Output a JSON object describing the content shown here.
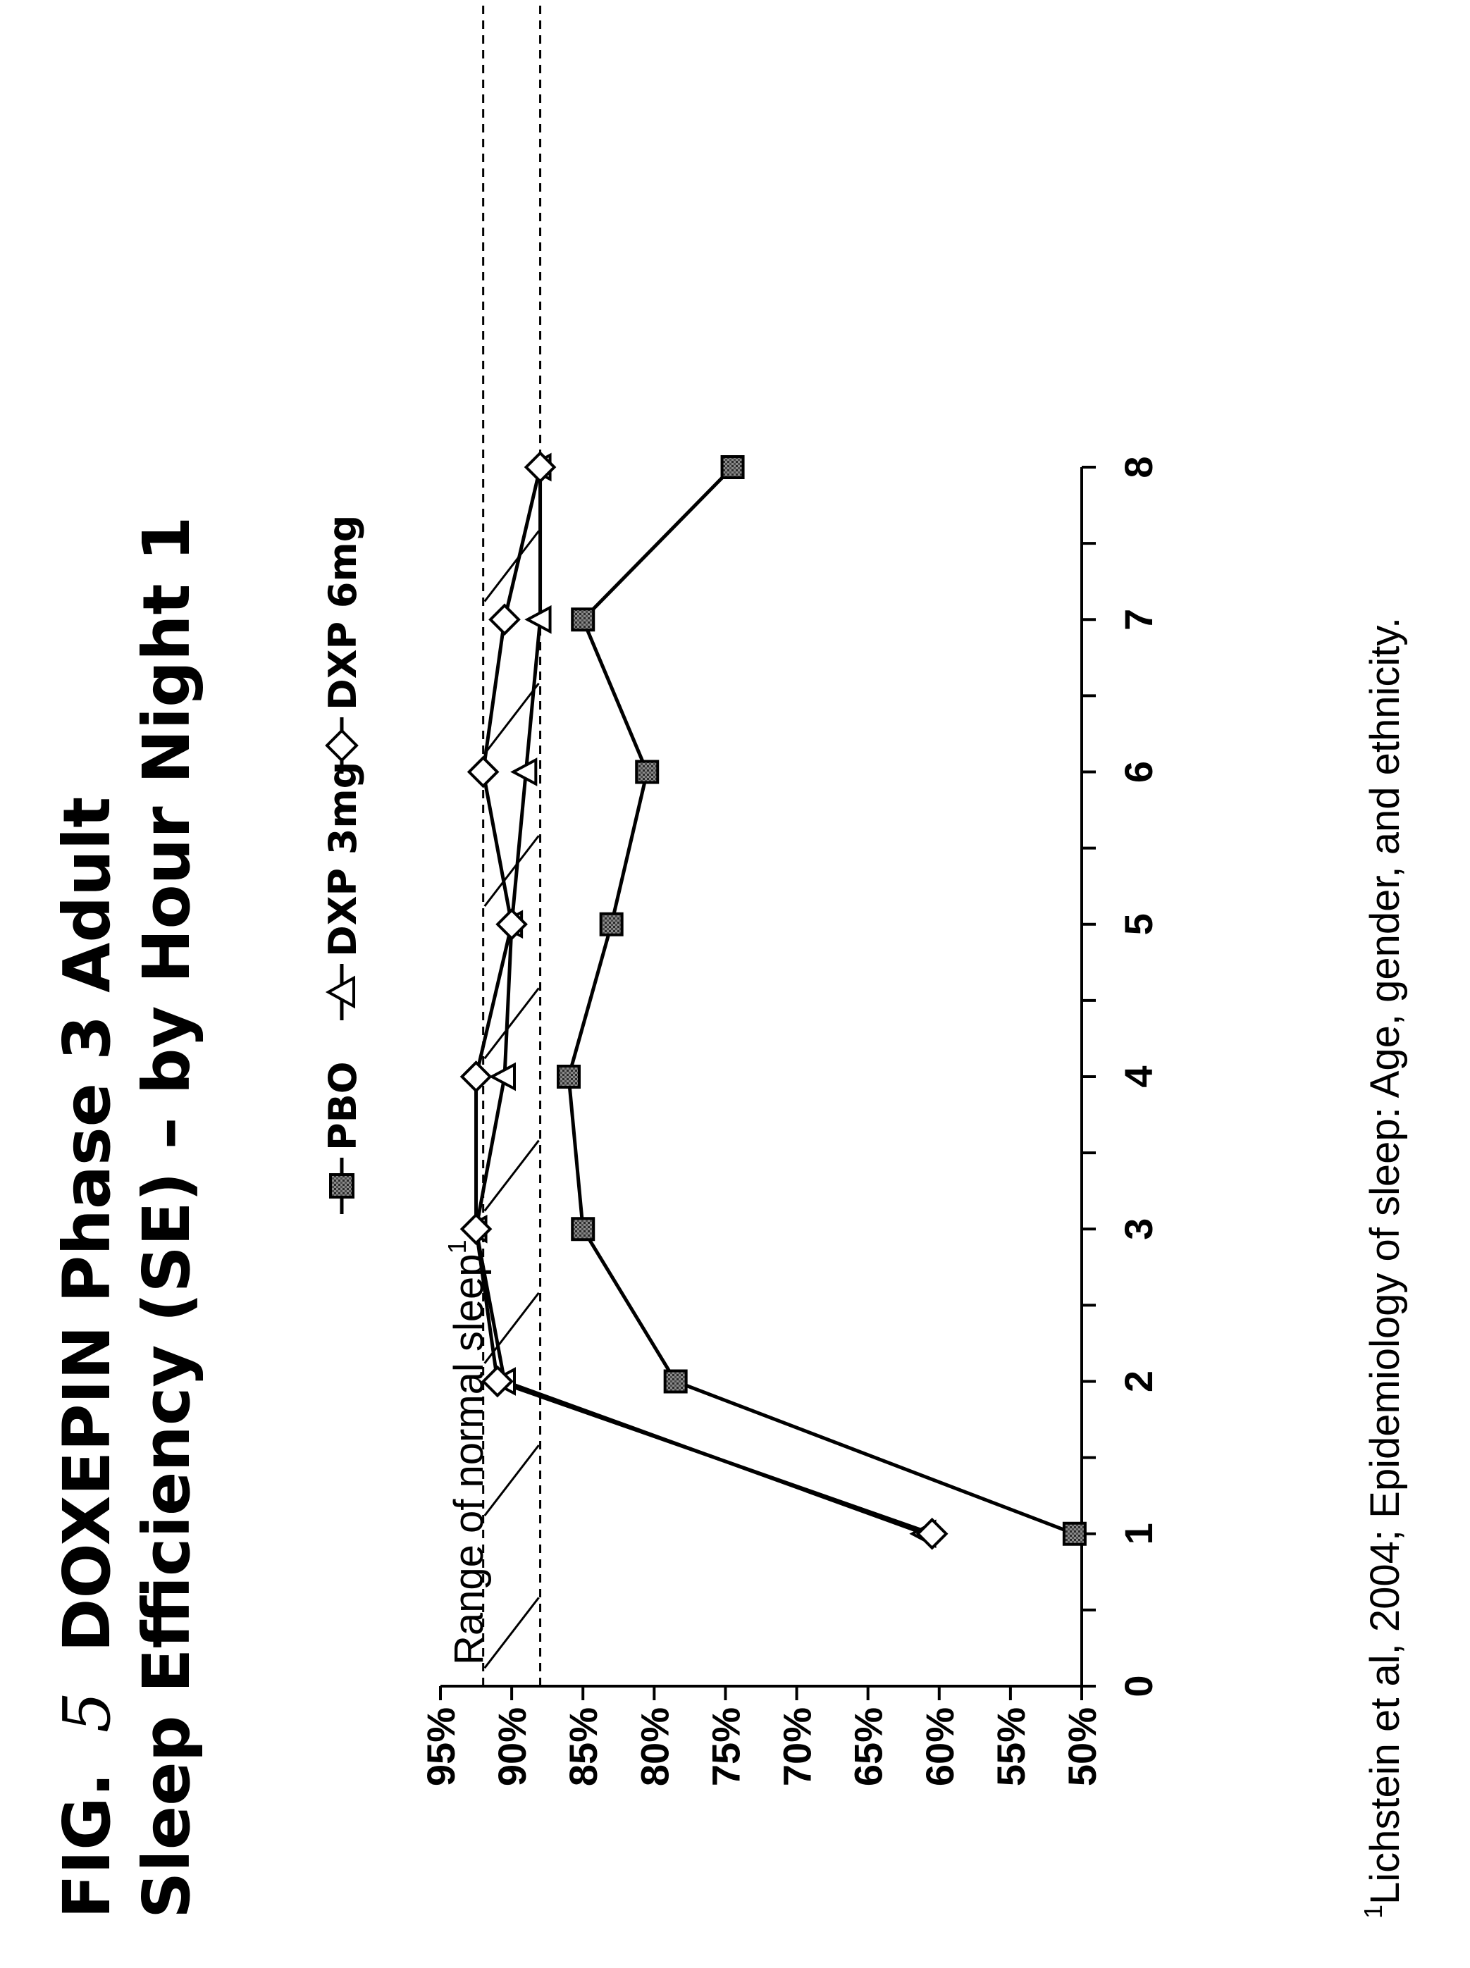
{
  "figure": {
    "fig_label": "FIG.",
    "fig_number": "5",
    "title_line1": "DOXEPIN Phase 3 Adult",
    "title_line2": "Sleep Efficiency (SE) – by Hour Night 1",
    "footnote_marker": "1",
    "footnote_text": "Lichstein et al, 2004; Epidemiology of sleep: Age, gender, and ethnicity."
  },
  "chart_data": {
    "type": "line",
    "x": [
      1,
      2,
      3,
      4,
      5,
      6,
      7,
      8
    ],
    "xlim": [
      0,
      8
    ],
    "x_ticks": [
      "0",
      "1",
      "2",
      "3",
      "4",
      "5",
      "6",
      "7",
      "8"
    ],
    "ylim": [
      50,
      95
    ],
    "y_ticks": [
      "50%",
      "55%",
      "60%",
      "65%",
      "70%",
      "75%",
      "80%",
      "85%",
      "90%",
      "95%"
    ],
    "grid": false,
    "legend_position": "top",
    "series": [
      {
        "name": "PBO",
        "marker": "square",
        "values": [
          50.5,
          78.5,
          85,
          86,
          83,
          80.5,
          85,
          74.5
        ]
      },
      {
        "name": "DXP 3mg",
        "marker": "triangle",
        "values": [
          61,
          90.5,
          92.5,
          90.5,
          90,
          89,
          88,
          88
        ]
      },
      {
        "name": "DXP 6mg",
        "marker": "diamond",
        "values": [
          60.5,
          91,
          92.5,
          92.5,
          90,
          92,
          90.5,
          88
        ]
      }
    ],
    "normal_range": {
      "label": "Range of normal sleep",
      "label_superscript": "1",
      "low": 88,
      "high": 92
    }
  }
}
